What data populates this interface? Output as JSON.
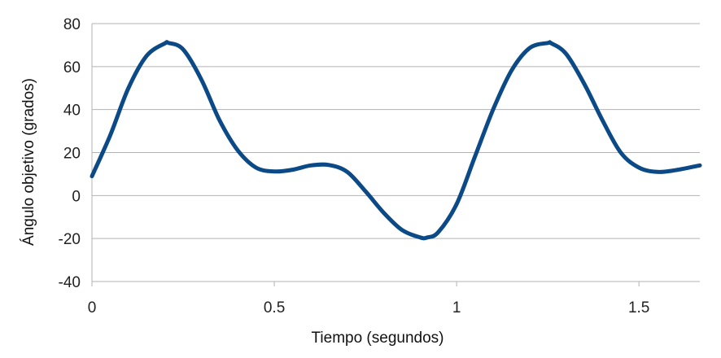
{
  "chart_data": {
    "type": "line",
    "title": "",
    "xlabel": "Tiempo (segundos)",
    "ylabel": "Ángulo objetivo (grados)",
    "xlim": [
      0,
      1.667
    ],
    "ylim": [
      -40,
      80
    ],
    "x_ticks": [
      0,
      0.5,
      1,
      1.5
    ],
    "x_tick_labels": [
      "0",
      "0.5",
      "1",
      "1.5"
    ],
    "y_ticks": [
      80,
      60,
      40,
      20,
      0,
      -20,
      -40
    ],
    "y_tick_labels": [
      "80",
      "60",
      "40",
      "20",
      "0",
      "-20",
      "-40"
    ],
    "grid": "horizontal",
    "legend": "none",
    "colors": {
      "line": "#0b4a86",
      "grid": "#b3b3b3",
      "axis": "#b3b3b3"
    },
    "series": [
      {
        "x": [
          0,
          0.05,
          0.1,
          0.15,
          0.2,
          0.21,
          0.25,
          0.3,
          0.35,
          0.4,
          0.45,
          0.5,
          0.55,
          0.6,
          0.65,
          0.7,
          0.75,
          0.8,
          0.85,
          0.9,
          0.92,
          0.95,
          1.0,
          1.05,
          1.1,
          1.15,
          1.2,
          1.25,
          1.26,
          1.3,
          1.35,
          1.4,
          1.45,
          1.5,
          1.55,
          1.6,
          1.667
        ],
        "y": [
          9,
          28,
          50,
          65,
          70.8,
          71,
          68,
          54,
          35,
          21,
          13,
          11.2,
          12,
          14,
          14.2,
          11,
          2,
          -8,
          -16,
          -19.5,
          -19.5,
          -17,
          -4,
          18,
          40,
          58,
          68.6,
          71,
          70.8,
          66,
          52,
          35,
          20,
          13,
          11,
          11.8,
          14
        ]
      }
    ]
  }
}
